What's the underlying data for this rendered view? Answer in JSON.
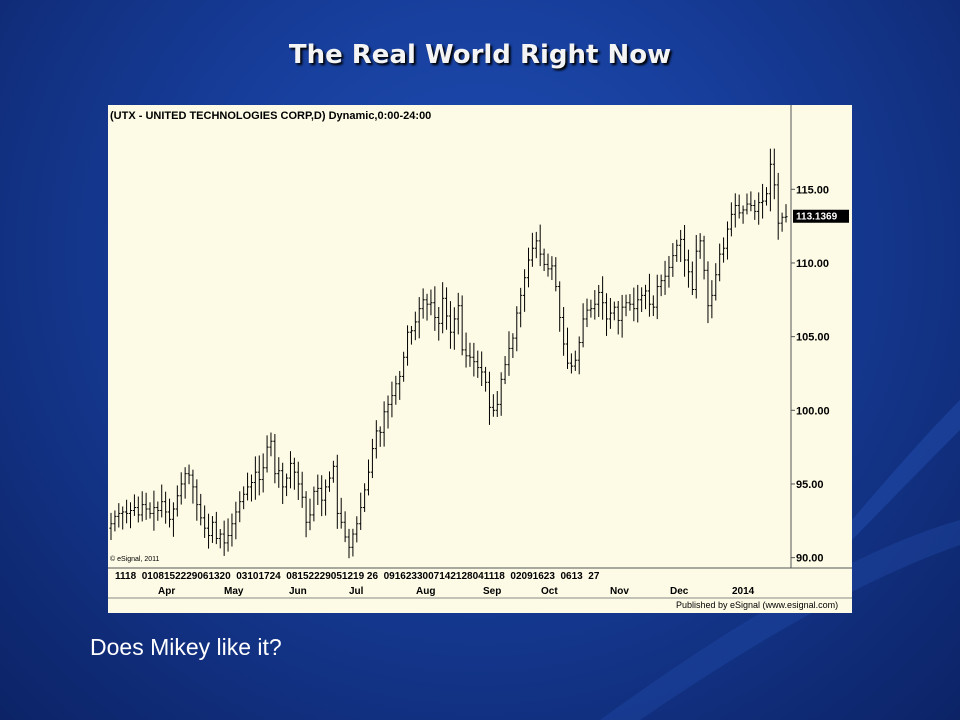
{
  "slide": {
    "title": "The Real World Right Now",
    "caption": "Does Mikey like it?"
  },
  "colors": {
    "background": "#163c98",
    "chart_bg": "#fdfbe6",
    "bar": "#000000",
    "price_tag_bg": "#000000",
    "price_tag_text": "#ffffff"
  },
  "chart_data": {
    "type": "ohlc",
    "title": "(UTX - UNITED TECHNOLOGIES CORP,D) Dynamic,0:00-24:00",
    "copyright": "© eSignal, 2011",
    "publisher": "Published by eSignal (www.esignal.com)",
    "last_price": "113.1369",
    "ylim": [
      89.5,
      119.5
    ],
    "yticks": [
      "90.00",
      "95.00",
      "100.00",
      "105.00",
      "110.00",
      "115.00"
    ],
    "x_day_labels": "1118  0108152229061320  03101724  08152229051219 26  0916233007142128041118  02091623  0613  27",
    "x_month_labels": [
      "Apr",
      "May",
      "Jun",
      "Jul",
      "Aug",
      "Sep",
      "Oct",
      "Nov",
      "Dec",
      "2014"
    ],
    "closes": [
      92.3,
      92.8,
      93.0,
      93.1,
      93.0,
      93.2,
      93.4,
      92.9,
      93.6,
      93.3,
      93.0,
      93.4,
      93.2,
      93.8,
      93.1,
      92.6,
      93.3,
      94.2,
      95.0,
      95.7,
      95.6,
      94.8,
      93.6,
      92.7,
      92.0,
      91.5,
      92.4,
      91.3,
      91.6,
      91.0,
      91.5,
      92.3,
      93.1,
      93.8,
      94.3,
      94.8,
      95.1,
      95.8,
      95.3,
      96.1,
      97.5,
      97.9,
      95.7,
      95.9,
      94.8,
      95.4,
      96.4,
      95.8,
      95.0,
      94.1,
      92.4,
      92.9,
      94.5,
      94.7,
      93.9,
      94.8,
      95.4,
      96.2,
      93.0,
      92.4,
      91.4,
      90.7,
      91.6,
      92.3,
      93.4,
      94.6,
      95.8,
      97.4,
      98.6,
      98.5,
      99.9,
      100.4,
      101.0,
      101.8,
      102.3,
      103.6,
      105.3,
      105.4,
      106.0,
      106.9,
      107.5,
      107.2,
      107.3,
      106.3,
      105.9,
      107.6,
      106.4,
      105.3,
      106.2,
      107.1,
      104.1,
      103.7,
      103.6,
      103.3,
      102.9,
      102.6,
      101.9,
      100.2,
      100.0,
      100.4,
      102.1,
      103.1,
      104.2,
      104.9,
      106.6,
      107.8,
      109.0,
      110.2,
      111.0,
      111.5,
      110.6,
      109.9,
      109.6,
      109.8,
      108.4,
      106.3,
      104.5,
      103.2,
      103.0,
      103.4,
      104.6,
      106.2,
      106.8,
      106.9,
      107.2,
      108.0,
      107.3,
      106.2,
      106.6,
      107.0,
      106.1,
      107.0,
      107.3,
      107.2,
      106.9,
      107.5,
      107.8,
      108.1,
      107.2,
      107.0,
      108.4,
      108.8,
      109.1,
      109.7,
      110.5,
      111.2,
      111.6,
      110.2,
      109.4,
      108.2,
      110.8,
      111.5,
      109.5,
      107.1,
      107.8,
      109.2,
      110.6,
      111.0,
      112.3,
      113.3,
      113.9,
      113.4,
      113.6,
      114.0,
      113.9,
      113.5,
      114.1,
      114.2,
      114.7,
      116.7,
      115.3,
      112.7,
      113.1,
      113.14
    ]
  }
}
